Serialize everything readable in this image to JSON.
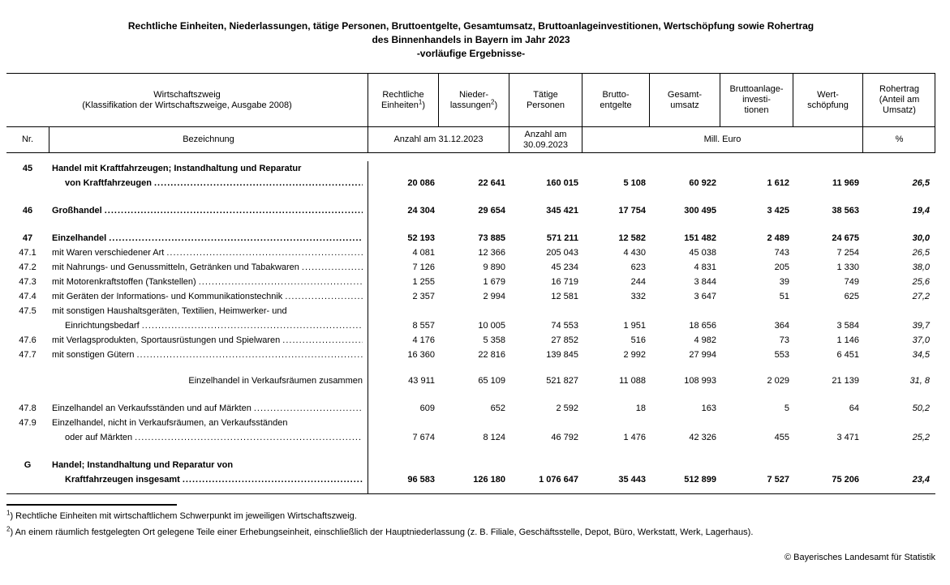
{
  "title": {
    "line1": "Rechtliche Einheiten, Niederlassungen, tätige Personen, Bruttoentgelte, Gesamtumsatz, Bruttoanlageinvestitionen, Wertschöpfung sowie Rohertrag",
    "line2": "des Binnenhandels in Bayern im Jahr 2023",
    "line3": "-vorläufige Ergebnisse-"
  },
  "header": {
    "wirtschaftszweig_line1": "Wirtschaftszweig",
    "wirtschaftszweig_line2": "(Klassifikation der Wirtschaftszweige, Ausgabe 2008)",
    "columns": [
      {
        "lines": [
          "Rechtliche",
          "Einheiten"
        ],
        "sup": "1",
        "sup_suffix": ")"
      },
      {
        "lines": [
          "Nieder-",
          "lassungen"
        ],
        "sup": "2",
        "sup_suffix": ")"
      },
      {
        "lines": [
          "Tätige",
          "Personen"
        ]
      },
      {
        "lines": [
          "Brutto-",
          "entgelte"
        ]
      },
      {
        "lines": [
          "Gesamt-",
          "umsatz"
        ]
      },
      {
        "lines": [
          "Bruttoanlage-",
          "investi-",
          "tionen"
        ]
      },
      {
        "lines": [
          "Wert-",
          "schöpfung"
        ]
      },
      {
        "lines": [
          "Rohertrag",
          "(Anteil am",
          "Umsatz)"
        ]
      }
    ],
    "row2": {
      "nr": "Nr.",
      "bezeichnung": "Bezeichnung",
      "anzahl_31": "Anzahl am 31.12.2023",
      "anzahl_30_line1": "Anzahl am",
      "anzahl_30_line2": "30.09.2023",
      "mill_euro": "Mill. Euro",
      "percent": "%"
    }
  },
  "table": {
    "rows": [
      {
        "nr": "45",
        "bold": true,
        "gap": 10,
        "lines": [
          {
            "text": "Handel mit Kraftfahrzeugen; Instandhaltung und Reparatur",
            "indent": false,
            "dots": false
          },
          {
            "text": "von Kraftfahrzeugen",
            "indent": true,
            "dots": true
          }
        ],
        "values": [
          "20 086",
          "22 641",
          "160 015",
          "5 108",
          "60 922",
          "1 612",
          "11 969"
        ],
        "pct": "26,5"
      },
      {
        "nr": "46",
        "bold": true,
        "gap": 16,
        "lines": [
          {
            "text": "Großhandel",
            "indent": false,
            "dots": true
          }
        ],
        "values": [
          "24 304",
          "29 654",
          "345 421",
          "17 754",
          "300 495",
          "3 425",
          "38 563"
        ],
        "pct": "19,4"
      },
      {
        "nr": "47",
        "bold": true,
        "gap": 16,
        "lines": [
          {
            "text": "Einzelhandel",
            "indent": false,
            "dots": true
          }
        ],
        "values": [
          "52 193",
          "73 885",
          "571 211",
          "12 582",
          "151 482",
          "2 489",
          "24 675"
        ],
        "pct": "30,0"
      },
      {
        "nr": "47.1",
        "bold": false,
        "gap": 0,
        "lines": [
          {
            "text": "mit Waren verschiedener Art",
            "indent": false,
            "dots": true
          }
        ],
        "values": [
          "4 081",
          "12 366",
          "205 043",
          "4 430",
          "45 038",
          "743",
          "7 254"
        ],
        "pct": "26,5"
      },
      {
        "nr": "47.2",
        "bold": false,
        "gap": 0,
        "lines": [
          {
            "text": "mit Nahrungs- und Genussmitteln, Getränken und Tabakwaren",
            "indent": false,
            "dots": true
          }
        ],
        "values": [
          "7 126",
          "9 890",
          "45 234",
          "623",
          "4 831",
          "205",
          "1 330"
        ],
        "pct": "38,0"
      },
      {
        "nr": "47.3",
        "bold": false,
        "gap": 0,
        "lines": [
          {
            "text": "mit Motorenkraftstoffen (Tankstellen)",
            "indent": false,
            "dots": true
          }
        ],
        "values": [
          "1 255",
          "1 679",
          "16 719",
          "244",
          "3 844",
          "39",
          "749"
        ],
        "pct": "25,6"
      },
      {
        "nr": "47.4",
        "bold": false,
        "gap": 0,
        "lines": [
          {
            "text": "mit Geräten der Informations- und Kommunikationstechnik",
            "indent": false,
            "dots": true
          }
        ],
        "values": [
          "2 357",
          "2 994",
          "12 581",
          "332",
          "3 647",
          "51",
          "625"
        ],
        "pct": "27,2"
      },
      {
        "nr": "47.5",
        "bold": false,
        "gap": 0,
        "lines": [
          {
            "text": "mit sonstigen Haushaltsgeräten, Textilien, Heimwerker- und",
            "indent": false,
            "dots": false
          },
          {
            "text": "Einrichtungsbedarf",
            "indent": true,
            "dots": true
          }
        ],
        "values": [
          "8 557",
          "10 005",
          "74 553",
          "1 951",
          "18 656",
          "364",
          "3 584"
        ],
        "pct": "39,7"
      },
      {
        "nr": "47.6",
        "bold": false,
        "gap": 0,
        "lines": [
          {
            "text": "mit Verlagsprodukten, Sportausrüstungen und Spielwaren",
            "indent": false,
            "dots": true
          }
        ],
        "values": [
          "4 176",
          "5 358",
          "27 852",
          "516",
          "4 982",
          "73",
          "1 146"
        ],
        "pct": "37,0"
      },
      {
        "nr": "47.7",
        "bold": false,
        "gap": 0,
        "lines": [
          {
            "text": "mit sonstigen Gütern",
            "indent": false,
            "dots": true
          }
        ],
        "values": [
          "16 360",
          "22 816",
          "139 845",
          "2 992",
          "27 994",
          "553",
          "6 451"
        ],
        "pct": "34,5"
      },
      {
        "nr": "",
        "bold": false,
        "gap": 14,
        "subtotal": true,
        "lines": [
          {
            "text": "Einzelhandel in Verkaufsräumen zusammen",
            "indent": false,
            "dots": false
          }
        ],
        "values": [
          "43 911",
          "65 109",
          "521 827",
          "11 088",
          "108 993",
          "2 029",
          "21 139"
        ],
        "pct": "31, 8"
      },
      {
        "nr": "47.8",
        "bold": false,
        "gap": 16,
        "lines": [
          {
            "text": "Einzelhandel an Verkaufsständen und auf Märkten",
            "indent": false,
            "dots": true
          }
        ],
        "values": [
          "609",
          "652",
          "2 592",
          "18",
          "163",
          "5",
          "64"
        ],
        "pct": "50,2"
      },
      {
        "nr": "47.9",
        "bold": false,
        "gap": 0,
        "lines": [
          {
            "text": "Einzelhandel, nicht in Verkaufsräumen, an Verkaufsständen",
            "indent": false,
            "dots": false
          },
          {
            "text": "oder auf Märkten",
            "indent": true,
            "dots": true
          }
        ],
        "values": [
          "7 674",
          "8 124",
          "46 792",
          "1 476",
          "42 326",
          "455",
          "3 471"
        ],
        "pct": "25,2"
      },
      {
        "nr": "G",
        "bold": true,
        "gap": 16,
        "lines": [
          {
            "text": "Handel; Instandhaltung und Reparatur von",
            "indent": false,
            "dots": false
          },
          {
            "text": "Kraftfahrzeugen insgesamt",
            "indent": true,
            "dots": true
          }
        ],
        "values": [
          "96 583",
          "126 180",
          "1 076 647",
          "35 443",
          "512 899",
          "7 527",
          "75 206"
        ],
        "pct": "23,4"
      }
    ]
  },
  "footnotes": [
    {
      "marker": "1",
      "text": ") Rechtliche Einheiten mit wirtschaftlichem Schwerpunkt im jeweiligen Wirtschaftszweig."
    },
    {
      "marker": "2",
      "text": ") An einem räumlich festgelegten Ort gelegene Teile einer Erhebungseinheit, einschließlich der Hauptniederlassung (z. B. Filiale, Geschäftsstelle, Depot, Büro, Werkstatt, Werk, Lagerhaus)."
    }
  ],
  "copyright": "© Bayerisches Landesamt für Statistik"
}
